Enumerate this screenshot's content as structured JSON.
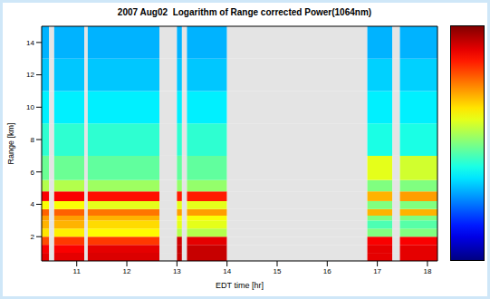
{
  "chart_data": {
    "type": "heatmap",
    "title": "2007 Aug02  Logarithm of Range corrected Power(1064nm)",
    "x_label": "EDT time [hr]",
    "y_label": "Range [km]",
    "xlim": [
      10.3,
      18.2
    ],
    "ylim": [
      0.5,
      15
    ],
    "xticks": [
      11,
      12,
      13,
      14,
      15,
      16,
      17,
      18
    ],
    "yticks": [
      2,
      4,
      6,
      8,
      10,
      12,
      14
    ],
    "x_edges": [
      10.3,
      10.45,
      10.55,
      11.15,
      11.22,
      12.65,
      13.0,
      13.1,
      13.2,
      14.0,
      16.8,
      17.3,
      17.45,
      18.2
    ],
    "y_edges": [
      0.5,
      1,
      1.5,
      2,
      2.5,
      3,
      3.3,
      3.7,
      4.2,
      4.8,
      5.5,
      7,
      9,
      11,
      13,
      15
    ],
    "cells": [
      [
        0.9,
        null,
        0.9,
        null,
        0.91,
        null,
        0.93,
        null,
        0.93,
        null,
        0.9,
        null,
        0.9
      ],
      [
        0.88,
        null,
        0.88,
        null,
        0.9,
        null,
        0.93,
        null,
        0.93,
        null,
        0.9,
        null,
        0.9
      ],
      [
        0.8,
        null,
        0.82,
        null,
        0.82,
        null,
        0.92,
        null,
        0.9,
        null,
        0.88,
        null,
        0.88
      ],
      [
        0.65,
        null,
        0.64,
        null,
        0.63,
        null,
        0.55,
        null,
        0.55,
        null,
        0.5,
        null,
        0.5
      ],
      [
        0.7,
        null,
        0.7,
        null,
        0.66,
        null,
        0.6,
        null,
        0.6,
        null,
        0.45,
        null,
        0.46
      ],
      [
        0.72,
        null,
        0.72,
        null,
        0.7,
        null,
        0.62,
        null,
        0.62,
        null,
        0.5,
        null,
        0.5
      ],
      [
        0.78,
        null,
        0.78,
        null,
        0.76,
        null,
        0.72,
        null,
        0.72,
        null,
        0.7,
        null,
        0.7
      ],
      [
        0.62,
        null,
        0.62,
        null,
        0.6,
        null,
        0.6,
        null,
        0.6,
        null,
        0.5,
        null,
        0.5
      ],
      [
        0.88,
        null,
        0.88,
        null,
        0.86,
        null,
        0.85,
        null,
        0.85,
        null,
        0.7,
        null,
        0.72
      ],
      [
        0.55,
        null,
        0.55,
        null,
        0.53,
        null,
        0.52,
        null,
        0.52,
        null,
        0.5,
        null,
        0.5
      ],
      [
        0.48,
        null,
        0.48,
        null,
        0.47,
        null,
        0.47,
        null,
        0.47,
        null,
        0.6,
        null,
        0.58
      ],
      [
        0.42,
        null,
        0.42,
        null,
        0.42,
        null,
        0.42,
        null,
        0.42,
        null,
        0.4,
        null,
        0.4
      ],
      [
        0.36,
        null,
        0.36,
        null,
        0.36,
        null,
        0.36,
        null,
        0.36,
        null,
        0.36,
        null,
        0.36
      ],
      [
        0.32,
        null,
        0.32,
        null,
        0.32,
        null,
        0.32,
        null,
        0.32,
        null,
        0.33,
        null,
        0.33
      ],
      [
        0.3,
        null,
        0.3,
        null,
        0.3,
        null,
        0.3,
        null,
        0.3,
        null,
        0.3,
        null,
        0.3
      ]
    ],
    "colorbar_range": [
      0,
      1
    ]
  }
}
